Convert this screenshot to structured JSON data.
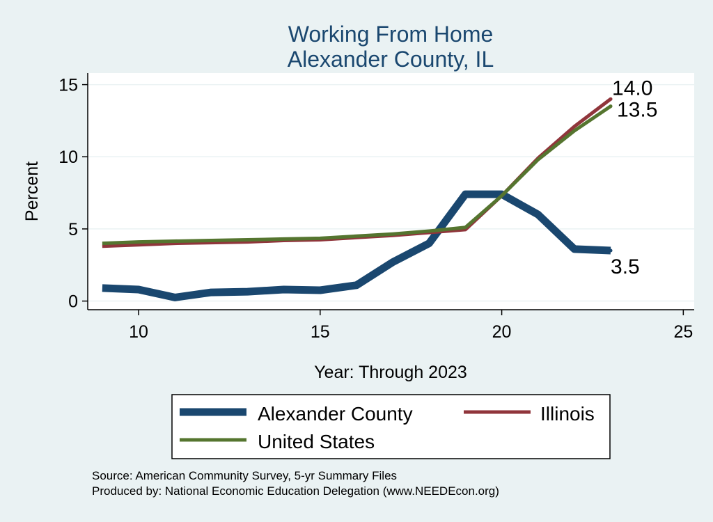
{
  "chart_data": {
    "type": "line",
    "title": "Working From Home",
    "subtitle": "Alexander County, IL",
    "xlabel": "Year: Through 2023",
    "ylabel": "Percent",
    "xlim": [
      8.6,
      25.3
    ],
    "ylim": [
      -0.6,
      15.8
    ],
    "xticks": [
      10,
      15,
      20,
      25
    ],
    "yticks": [
      0,
      5,
      10,
      15
    ],
    "grid": true,
    "legend_position": "bottom",
    "series": [
      {
        "name": "Alexander County",
        "color": "#1a476f",
        "x": [
          9,
          10,
          11,
          12,
          13,
          14,
          15,
          16,
          17,
          18,
          19,
          20,
          21,
          22,
          23
        ],
        "values": [
          0.9,
          0.8,
          0.25,
          0.6,
          0.65,
          0.8,
          0.75,
          1.1,
          2.7,
          4.0,
          7.4,
          7.4,
          6.0,
          3.6,
          3.5
        ],
        "end_label": "3.5"
      },
      {
        "name": "Illinois",
        "color": "#90353b",
        "x": [
          9,
          10,
          11,
          12,
          13,
          14,
          15,
          16,
          17,
          18,
          19,
          20,
          21,
          22,
          23
        ],
        "values": [
          3.8,
          3.9,
          4.0,
          4.05,
          4.1,
          4.2,
          4.25,
          4.4,
          4.55,
          4.75,
          4.95,
          7.3,
          9.9,
          12.1,
          14.0
        ],
        "end_label": "14.0"
      },
      {
        "name": "United States",
        "color": "#55752f",
        "x": [
          9,
          10,
          11,
          12,
          13,
          14,
          15,
          16,
          17,
          18,
          19,
          20,
          21,
          22,
          23
        ],
        "values": [
          4.0,
          4.1,
          4.15,
          4.2,
          4.25,
          4.3,
          4.35,
          4.5,
          4.65,
          4.85,
          5.1,
          7.3,
          9.8,
          11.8,
          13.5
        ],
        "end_label": "13.5"
      }
    ]
  },
  "footer": {
    "source": "Source: American Community Survey, 5-yr Summary Files",
    "produced_by": "Produced by: National Economic Education Delegation (www.NEEDEcon.org)"
  }
}
